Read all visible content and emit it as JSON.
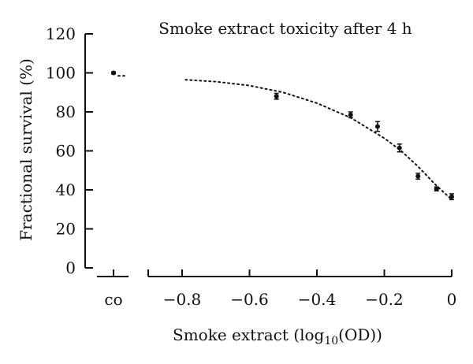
{
  "chart_data": {
    "type": "scatter",
    "title": "Smoke extract toxicity after 4 h",
    "xlabel": {
      "main": "Smoke extract (log",
      "sub": "10",
      "tail": "(OD))"
    },
    "ylabel": "Fractional survival (%)",
    "ylim": [
      0,
      120
    ],
    "xlim": [
      -0.9,
      0
    ],
    "yticks": [
      "0",
      "20",
      "40",
      "60",
      "80",
      "100",
      "120"
    ],
    "yticks_values": [
      0,
      20,
      40,
      60,
      80,
      100,
      120
    ],
    "xticks": [
      "−0.8",
      "−0.6",
      "−0.4",
      "−0.2",
      "0"
    ],
    "xticks_values": [
      -0.8,
      -0.6,
      -0.4,
      -0.2,
      0
    ],
    "control": {
      "label": "co",
      "value": 100,
      "error": 0.5
    },
    "series": [
      {
        "points": [
          {
            "x": -0.52,
            "y": 88,
            "err": 1.5
          },
          {
            "x": -0.3,
            "y": 78.5,
            "err": 1.5
          },
          {
            "x": -0.22,
            "y": 72.5,
            "err": 2.5
          },
          {
            "x": -0.155,
            "y": 61.5,
            "err": 2.0
          },
          {
            "x": -0.1,
            "y": 47,
            "err": 1.5
          },
          {
            "x": -0.045,
            "y": 40.5,
            "err": 1.0
          },
          {
            "x": 0.0,
            "y": 36.5,
            "err": 1.5
          }
        ]
      }
    ],
    "fit_curve": {
      "style": "dotted",
      "points": [
        {
          "x": -0.79,
          "y": 96.5
        },
        {
          "x": -0.7,
          "y": 95.5
        },
        {
          "x": -0.6,
          "y": 93.5
        },
        {
          "x": -0.5,
          "y": 90.0
        },
        {
          "x": -0.4,
          "y": 84.5
        },
        {
          "x": -0.3,
          "y": 77.0
        },
        {
          "x": -0.2,
          "y": 66.5
        },
        {
          "x": -0.15,
          "y": 60.0
        },
        {
          "x": -0.1,
          "y": 52.0
        },
        {
          "x": -0.05,
          "y": 43.0
        },
        {
          "x": 0.0,
          "y": 35.0
        }
      ]
    },
    "control_fit": {
      "style": "dotted",
      "y": 98.5
    },
    "grid": false
  }
}
